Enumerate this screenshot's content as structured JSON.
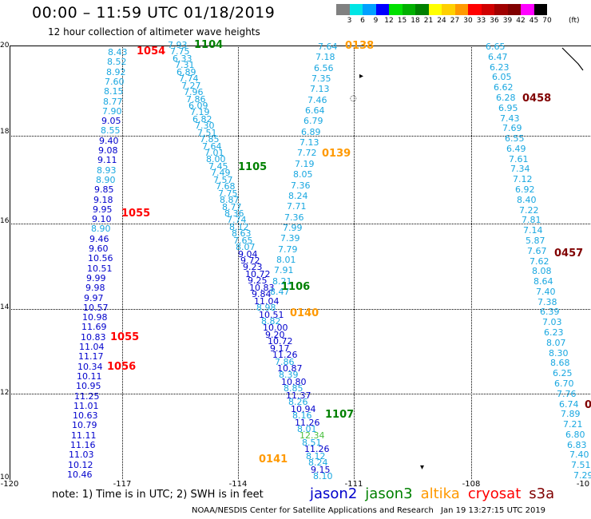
{
  "header": {
    "title": "00:00 – 11:59 UTC 01/18/2019",
    "subtitle": "12 hour collection of altimeter wave heights"
  },
  "scale": {
    "unit_label": "(ft)",
    "bins": [
      {
        "label": "3",
        "color": "#808080"
      },
      {
        "label": "6",
        "color": "#00e5e5"
      },
      {
        "label": "9",
        "color": "#00a0ff"
      },
      {
        "label": "12",
        "color": "#0000ff"
      },
      {
        "label": "15",
        "color": "#00e000"
      },
      {
        "label": "18",
        "color": "#00b000"
      },
      {
        "label": "21",
        "color": "#008000"
      },
      {
        "label": "24",
        "color": "#ffff00"
      },
      {
        "label": "27",
        "color": "#ffd000"
      },
      {
        "label": "30",
        "color": "#ff9900"
      },
      {
        "label": "33",
        "color": "#ff0000"
      },
      {
        "label": "36",
        "color": "#d00000"
      },
      {
        "label": "39",
        "color": "#a00000"
      },
      {
        "label": "42",
        "color": "#800000"
      },
      {
        "label": "45",
        "color": "#ff00ff"
      },
      {
        "label": "70",
        "color": "#000000"
      }
    ]
  },
  "axes": {
    "lat_ticks": [
      "20",
      "18",
      "16",
      "14",
      "12",
      "10"
    ],
    "lon_ticks": [
      "-120",
      "-117",
      "-114",
      "-111",
      "-108",
      "-10"
    ]
  },
  "passes": [
    {
      "label": "1104",
      "color": "#008000"
    },
    {
      "label": "1054",
      "color": "#ff0000"
    },
    {
      "label": "0138",
      "color": "#ff9900"
    },
    {
      "label": "0458",
      "color": "#800000"
    },
    {
      "label": "0139",
      "color": "#ff9900"
    },
    {
      "label": "1105",
      "color": "#008000"
    },
    {
      "label": "1055",
      "color": "#ff0000"
    },
    {
      "label": "0457",
      "color": "#800000"
    },
    {
      "label": "1106",
      "color": "#008000"
    },
    {
      "label": "0140",
      "color": "#ff9900"
    },
    {
      "label": "1055",
      "color": "#ff0000"
    },
    {
      "label": "1056",
      "color": "#ff0000"
    },
    {
      "label": "1107",
      "color": "#008000"
    },
    {
      "label": "0141",
      "color": "#ff9900"
    },
    {
      "label": "0",
      "color": "#800000"
    }
  ],
  "tracks": {
    "jason2_colors": {
      "cyan": "#19a7e0",
      "blue": "#0000cc",
      "green": "#4cc040"
    },
    "track_a": [
      "8.43",
      "8.52",
      "8.92",
      "7.60",
      "8.15",
      "8.77",
      "7.90",
      "9.05",
      "8.55",
      "9.40",
      "9.08",
      "9.11",
      "8.93",
      "8.90",
      "9.85",
      "9.18",
      "9.95",
      "9.10",
      "8.90",
      "9.46",
      "9.60",
      "10.56",
      "10.51",
      "9.99",
      "9.98",
      "9.97",
      "10.57",
      "10.98",
      "11.69",
      "10.83",
      "11.04",
      "11.17",
      "10.34",
      "10.11",
      "10.95",
      "11.25",
      "11.01",
      "10.63",
      "10.79",
      "11.11",
      "11.16",
      "11.03",
      "10.12",
      "10.46"
    ],
    "track_b": [
      "7.93",
      "7.75",
      "6.33",
      "7.31",
      "6.89",
      "7.74",
      "7.27",
      "7.96",
      "7.86",
      "6.09",
      "7.19",
      "6.82",
      "7.30",
      "7.51",
      "7.85",
      "7.64",
      "7.01",
      "8.00",
      "7.45",
      "7.49",
      "7.57",
      "7.68",
      "7.75",
      "8.87",
      "8.77",
      "8.36",
      "7.74",
      "8.12",
      "8.63",
      "7.65",
      "8.07",
      "9.04",
      "9.72",
      "9.23",
      "10.72",
      "9.25",
      "10.83",
      "9.84",
      "11.04",
      "8.98",
      "10.51",
      "8.82",
      "10.00",
      "9.20",
      "10.72",
      "9.17",
      "11.26",
      "7.86",
      "10.87",
      "8.39",
      "10.80",
      "8.85",
      "11.37",
      "8.26",
      "10.94",
      "8.16",
      "11.26",
      "8.01",
      "12.34",
      "8.51",
      "11.26",
      "8.12",
      "8.24",
      "9.15",
      "8.10"
    ],
    "track_c": [
      "7.64",
      "7.18",
      "6.56",
      "7.35",
      "7.13",
      "7.46",
      "6.64",
      "6.79",
      "6.89",
      "7.13",
      "7.72",
      "7.19",
      "8.05",
      "7.36",
      "8.24",
      "7.71",
      "7.36",
      "7.99",
      "7.39",
      "7.79",
      "8.01",
      "7.91",
      "8.21",
      "8.47"
    ],
    "track_d": [
      "6.65",
      "6.47",
      "6.23",
      "6.05",
      "6.62",
      "6.28",
      "6.95",
      "7.43",
      "7.69",
      "6.55",
      "6.49",
      "7.61",
      "7.34",
      "7.12",
      "6.92",
      "8.40",
      "7.22",
      "7.81",
      "7.14",
      "5.87",
      "7.67",
      "7.62",
      "8.08",
      "8.64",
      "7.40",
      "7.38",
      "6.39",
      "7.03",
      "6.23",
      "8.07",
      "8.30",
      "8.68",
      "6.25",
      "6.70",
      "7.76",
      "6.74",
      "7.89",
      "7.21",
      "6.80",
      "6.83",
      "7.40",
      "7.51",
      "7.29"
    ]
  },
  "footer": {
    "note": "note: 1) Time is in UTC; 2) SWH is in feet",
    "legend": [
      {
        "label": "jason2",
        "color": "#0000cc"
      },
      {
        "label": "jason3",
        "color": "#008000"
      },
      {
        "label": "altika",
        "color": "#ff9900"
      },
      {
        "label": "cryosat",
        "color": "#ff0000"
      },
      {
        "label": "s3a",
        "color": "#800000"
      }
    ],
    "credit": "NOAA/NESDIS Center for Satellite Applications and Research",
    "timestamp": "Jan 19 13:27:15 UTC 2019"
  }
}
